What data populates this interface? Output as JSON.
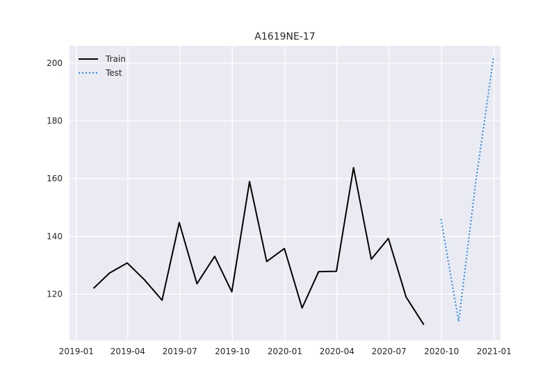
{
  "chart_data": {
    "type": "line",
    "title": "A1619NE-17",
    "xlabel": "",
    "ylabel": "",
    "x_ticks": [
      "2019-01",
      "2019-04",
      "2019-07",
      "2019-10",
      "2020-01",
      "2020-04",
      "2020-07",
      "2020-10",
      "2021-01"
    ],
    "y_ticks": [
      120,
      140,
      160,
      180,
      200
    ],
    "ylim": [
      104,
      206
    ],
    "xlim": [
      "2018-12-20",
      "2021-01-12"
    ],
    "grid": true,
    "legend_position": "top-left",
    "series": [
      {
        "name": "Train",
        "style": "solid",
        "color": "#000000",
        "points": [
          {
            "x": "2019-01-31",
            "y": 122
          },
          {
            "x": "2019-02-28",
            "y": 127.3
          },
          {
            "x": "2019-03-31",
            "y": 130.8
          },
          {
            "x": "2019-04-30",
            "y": 125
          },
          {
            "x": "2019-05-31",
            "y": 117.9
          },
          {
            "x": "2019-06-30",
            "y": 144.8
          },
          {
            "x": "2019-07-31",
            "y": 123.6
          },
          {
            "x": "2019-08-31",
            "y": 133.1
          },
          {
            "x": "2019-09-30",
            "y": 120.8
          },
          {
            "x": "2019-10-31",
            "y": 159
          },
          {
            "x": "2019-11-30",
            "y": 131.3
          },
          {
            "x": "2019-12-31",
            "y": 135.8
          },
          {
            "x": "2020-01-31",
            "y": 115.2
          },
          {
            "x": "2020-02-29",
            "y": 127.8
          },
          {
            "x": "2020-03-31",
            "y": 127.9
          },
          {
            "x": "2020-04-30",
            "y": 163.8
          },
          {
            "x": "2020-05-31",
            "y": 132.1
          },
          {
            "x": "2020-06-30",
            "y": 139.3
          },
          {
            "x": "2020-07-31",
            "y": 119
          },
          {
            "x": "2020-08-31",
            "y": 109.4
          }
        ]
      },
      {
        "name": "Test",
        "style": "dotted",
        "color": "#1e88e5",
        "points": [
          {
            "x": "2020-09-30",
            "y": 146
          },
          {
            "x": "2020-10-31",
            "y": 110.5
          },
          {
            "x": "2020-11-30",
            "y": 159
          },
          {
            "x": "2020-12-31",
            "y": 202
          }
        ]
      }
    ]
  }
}
